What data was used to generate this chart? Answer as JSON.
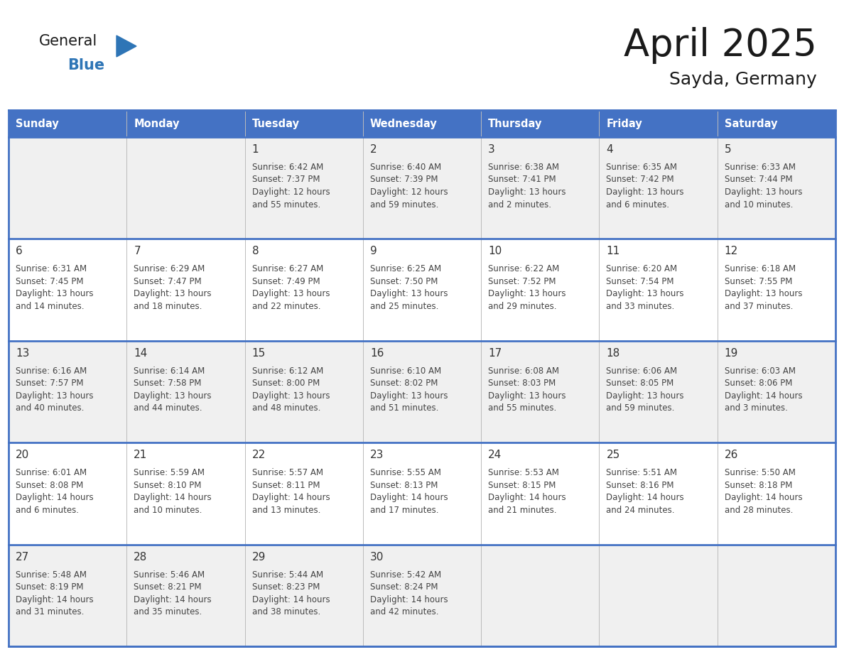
{
  "title": "April 2025",
  "subtitle": "Sayda, Germany",
  "header_bg": "#4472C4",
  "header_text_color": "#FFFFFF",
  "cell_bg_even": "#F0F0F0",
  "cell_bg_odd": "#FFFFFF",
  "day_names": [
    "Sunday",
    "Monday",
    "Tuesday",
    "Wednesday",
    "Thursday",
    "Friday",
    "Saturday"
  ],
  "title_color": "#1a1a1a",
  "subtitle_color": "#1a1a1a",
  "day_number_color": "#333333",
  "cell_text_color": "#444444",
  "grid_color": "#BBBBBB",
  "weeks": [
    [
      {
        "day": null,
        "sunrise": null,
        "sunset": null,
        "daylight": null
      },
      {
        "day": null,
        "sunrise": null,
        "sunset": null,
        "daylight": null
      },
      {
        "day": 1,
        "sunrise": "6:42 AM",
        "sunset": "7:37 PM",
        "daylight": "12 hours\nand 55 minutes."
      },
      {
        "day": 2,
        "sunrise": "6:40 AM",
        "sunset": "7:39 PM",
        "daylight": "12 hours\nand 59 minutes."
      },
      {
        "day": 3,
        "sunrise": "6:38 AM",
        "sunset": "7:41 PM",
        "daylight": "13 hours\nand 2 minutes."
      },
      {
        "day": 4,
        "sunrise": "6:35 AM",
        "sunset": "7:42 PM",
        "daylight": "13 hours\nand 6 minutes."
      },
      {
        "day": 5,
        "sunrise": "6:33 AM",
        "sunset": "7:44 PM",
        "daylight": "13 hours\nand 10 minutes."
      }
    ],
    [
      {
        "day": 6,
        "sunrise": "6:31 AM",
        "sunset": "7:45 PM",
        "daylight": "13 hours\nand 14 minutes."
      },
      {
        "day": 7,
        "sunrise": "6:29 AM",
        "sunset": "7:47 PM",
        "daylight": "13 hours\nand 18 minutes."
      },
      {
        "day": 8,
        "sunrise": "6:27 AM",
        "sunset": "7:49 PM",
        "daylight": "13 hours\nand 22 minutes."
      },
      {
        "day": 9,
        "sunrise": "6:25 AM",
        "sunset": "7:50 PM",
        "daylight": "13 hours\nand 25 minutes."
      },
      {
        "day": 10,
        "sunrise": "6:22 AM",
        "sunset": "7:52 PM",
        "daylight": "13 hours\nand 29 minutes."
      },
      {
        "day": 11,
        "sunrise": "6:20 AM",
        "sunset": "7:54 PM",
        "daylight": "13 hours\nand 33 minutes."
      },
      {
        "day": 12,
        "sunrise": "6:18 AM",
        "sunset": "7:55 PM",
        "daylight": "13 hours\nand 37 minutes."
      }
    ],
    [
      {
        "day": 13,
        "sunrise": "6:16 AM",
        "sunset": "7:57 PM",
        "daylight": "13 hours\nand 40 minutes."
      },
      {
        "day": 14,
        "sunrise": "6:14 AM",
        "sunset": "7:58 PM",
        "daylight": "13 hours\nand 44 minutes."
      },
      {
        "day": 15,
        "sunrise": "6:12 AM",
        "sunset": "8:00 PM",
        "daylight": "13 hours\nand 48 minutes."
      },
      {
        "day": 16,
        "sunrise": "6:10 AM",
        "sunset": "8:02 PM",
        "daylight": "13 hours\nand 51 minutes."
      },
      {
        "day": 17,
        "sunrise": "6:08 AM",
        "sunset": "8:03 PM",
        "daylight": "13 hours\nand 55 minutes."
      },
      {
        "day": 18,
        "sunrise": "6:06 AM",
        "sunset": "8:05 PM",
        "daylight": "13 hours\nand 59 minutes."
      },
      {
        "day": 19,
        "sunrise": "6:03 AM",
        "sunset": "8:06 PM",
        "daylight": "14 hours\nand 3 minutes."
      }
    ],
    [
      {
        "day": 20,
        "sunrise": "6:01 AM",
        "sunset": "8:08 PM",
        "daylight": "14 hours\nand 6 minutes."
      },
      {
        "day": 21,
        "sunrise": "5:59 AM",
        "sunset": "8:10 PM",
        "daylight": "14 hours\nand 10 minutes."
      },
      {
        "day": 22,
        "sunrise": "5:57 AM",
        "sunset": "8:11 PM",
        "daylight": "14 hours\nand 13 minutes."
      },
      {
        "day": 23,
        "sunrise": "5:55 AM",
        "sunset": "8:13 PM",
        "daylight": "14 hours\nand 17 minutes."
      },
      {
        "day": 24,
        "sunrise": "5:53 AM",
        "sunset": "8:15 PM",
        "daylight": "14 hours\nand 21 minutes."
      },
      {
        "day": 25,
        "sunrise": "5:51 AM",
        "sunset": "8:16 PM",
        "daylight": "14 hours\nand 24 minutes."
      },
      {
        "day": 26,
        "sunrise": "5:50 AM",
        "sunset": "8:18 PM",
        "daylight": "14 hours\nand 28 minutes."
      }
    ],
    [
      {
        "day": 27,
        "sunrise": "5:48 AM",
        "sunset": "8:19 PM",
        "daylight": "14 hours\nand 31 minutes."
      },
      {
        "day": 28,
        "sunrise": "5:46 AM",
        "sunset": "8:21 PM",
        "daylight": "14 hours\nand 35 minutes."
      },
      {
        "day": 29,
        "sunrise": "5:44 AM",
        "sunset": "8:23 PM",
        "daylight": "14 hours\nand 38 minutes."
      },
      {
        "day": 30,
        "sunrise": "5:42 AM",
        "sunset": "8:24 PM",
        "daylight": "14 hours\nand 42 minutes."
      },
      {
        "day": null,
        "sunrise": null,
        "sunset": null,
        "daylight": null
      },
      {
        "day": null,
        "sunrise": null,
        "sunset": null,
        "daylight": null
      },
      {
        "day": null,
        "sunrise": null,
        "sunset": null,
        "daylight": null
      }
    ]
  ],
  "logo_general_color": "#1a1a1a",
  "logo_blue_color": "#2E75B6",
  "logo_triangle_color": "#2E75B6"
}
